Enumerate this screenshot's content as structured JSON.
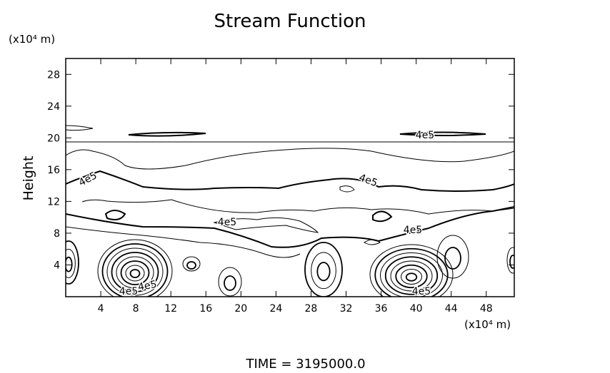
{
  "chart_data": {
    "type": "contour",
    "title": "Stream Function",
    "ylabel": "Height",
    "xunit": "(x10⁴ m)",
    "yunit": "(x10⁴ m)",
    "footer": "TIME = 3195000.0",
    "xlim": [
      0,
      51.2
    ],
    "ylim": [
      0,
      30
    ],
    "xticks": [
      4,
      8,
      12,
      16,
      20,
      24,
      28,
      32,
      36,
      40,
      44,
      48
    ],
    "yticks": [
      4,
      8,
      12,
      16,
      20,
      24,
      28
    ],
    "levels": [
      {
        "value": 400000,
        "label": "4e5"
      }
    ],
    "color": "#000000"
  }
}
